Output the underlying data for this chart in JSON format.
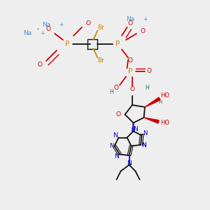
{
  "background_color": "#eeeeee",
  "figsize": [
    3.0,
    3.0
  ],
  "dpi": 100,
  "colors": {
    "Na": "#4a90d9",
    "P": "#cc8800",
    "O": "#cc0000",
    "Br": "#cc8800",
    "N": "#0000cc",
    "C": "#111111",
    "H": "#336666",
    "bond": "#111111",
    "stereo_red": "#cc0000"
  }
}
